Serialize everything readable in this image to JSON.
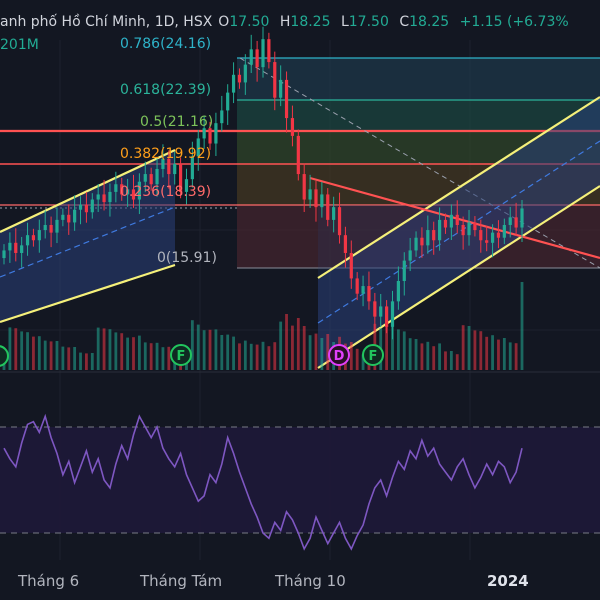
{
  "header": {
    "title": "anh phố Hồ Chí Minh, 1D, HSX",
    "open_label": "O",
    "open": "17.50",
    "high_label": "H",
    "high": "18.25",
    "low_label": "L",
    "low": "17.50",
    "close_label": "C",
    "close": "18.25",
    "change": "+1.15 (+6.73%",
    "volume": "201M"
  },
  "fib_labels": [
    "0.786(24.16)",
    "0.618(22.39)",
    "0.5(21.16)",
    "0.382(19.92)",
    "0.236(18.39)",
    "0(15.91)"
  ],
  "event_markers": [
    "F",
    "D",
    "F"
  ],
  "x_axis": [
    "Tháng 6",
    "Tháng Tám",
    "Tháng 10",
    "2024"
  ],
  "colors": {
    "background": "#131722",
    "up": "#22ab94",
    "down": "#f23645",
    "channel_line": "#f5f07a",
    "rsi_line": "#7e57c2",
    "trend_red": "#ff5252"
  },
  "chart_data": [
    {
      "type": "candlestick",
      "title": "",
      "x_axis_ticks": [
        "Tháng 6",
        "Tháng Tám",
        "Tháng 10",
        "2024"
      ],
      "last_candle": {
        "open": 17.5,
        "high": 18.25,
        "low": 17.5,
        "close": 18.25,
        "change": 1.15,
        "change_pct": 6.73
      },
      "fibonacci_levels": [
        {
          "ratio": 0.786,
          "price": 24.16
        },
        {
          "ratio": 0.618,
          "price": 22.39
        },
        {
          "ratio": 0.5,
          "price": 21.16
        },
        {
          "ratio": 0.382,
          "price": 19.92
        },
        {
          "ratio": 0.236,
          "price": 18.39
        },
        {
          "ratio": 0,
          "price": 15.91
        }
      ],
      "close_series": [
        16.6,
        16.9,
        16.5,
        16.8,
        17.2,
        17.0,
        17.4,
        17.6,
        17.3,
        17.8,
        18.0,
        17.7,
        18.2,
        18.4,
        18.1,
        18.6,
        18.8,
        18.5,
        18.9,
        19.2,
        18.8,
        19.0,
        18.6,
        19.3,
        19.6,
        19.2,
        19.8,
        20.2,
        19.6,
        20.0,
        18.9,
        19.4,
        20.3,
        21.0,
        21.4,
        20.8,
        21.6,
        22.1,
        22.8,
        23.5,
        23.2,
        23.9,
        24.5,
        23.8,
        24.9,
        24.0,
        22.6,
        23.3,
        21.8,
        21.1,
        19.6,
        18.6,
        19.0,
        18.3,
        18.8,
        17.8,
        18.3,
        17.2,
        16.5,
        15.5,
        14.9,
        15.2,
        14.6,
        14.0,
        14.4,
        13.6,
        14.6,
        15.4,
        16.2,
        16.6,
        17.1,
        16.8,
        17.4,
        17.0,
        17.8,
        17.5,
        18.0,
        17.6,
        17.2,
        17.7,
        17.4,
        17.0,
        16.9,
        17.3,
        17.1,
        17.6,
        17.9,
        17.5,
        18.25
      ]
    },
    {
      "type": "line",
      "title": "",
      "series": [
        {
          "values": [
            62,
            58,
            55,
            64,
            71,
            72,
            68,
            74,
            66,
            60,
            52,
            57,
            49,
            55,
            61,
            53,
            58,
            50,
            47,
            56,
            63,
            58,
            67,
            74,
            70,
            66,
            70,
            62,
            58,
            55,
            60,
            52,
            47,
            42,
            44,
            52,
            49,
            56,
            66,
            60,
            53,
            47,
            41,
            36,
            30,
            28,
            34,
            31,
            38,
            35,
            30,
            24,
            28,
            36,
            31,
            26,
            30,
            34,
            28,
            24,
            29,
            33,
            41,
            47,
            50,
            44,
            51,
            57,
            54,
            61,
            58,
            65,
            59,
            62,
            56,
            53,
            50,
            55,
            58,
            52,
            47,
            51,
            56,
            52,
            57,
            55,
            49,
            53,
            62
          ]
        }
      ],
      "levels": [
        70,
        30
      ]
    }
  ]
}
